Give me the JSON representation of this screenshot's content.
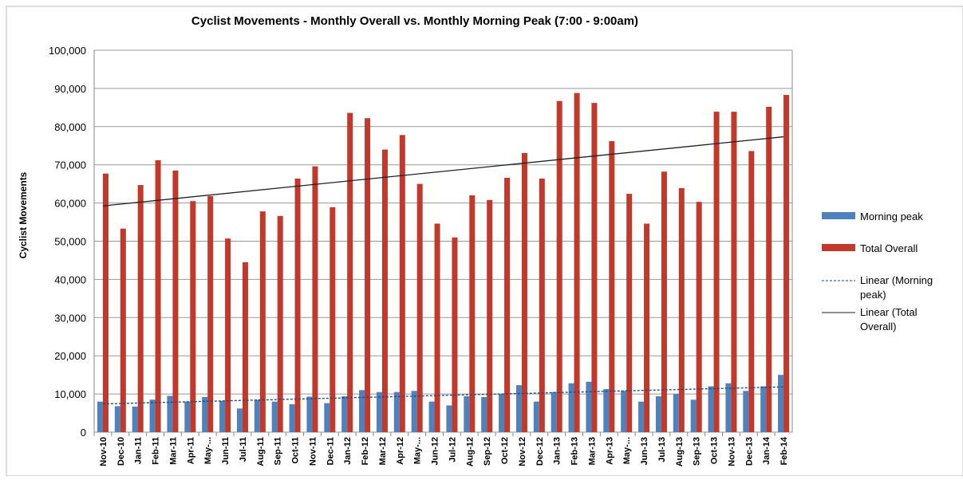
{
  "chart_data": {
    "type": "bar",
    "title": "Cyclist Movements - Monthly Overall vs. Monthly Morning  Peak (7:00 - 9:00am)",
    "y_label": "Cyclist Movements",
    "categories": [
      "Nov-10",
      "Dec-10",
      "Jan-11",
      "Feb-11",
      "Mar-11",
      "Apr-11",
      "May-...",
      "Jun-11",
      "Jul-11",
      "Aug-11",
      "Sep-11",
      "Oct-11",
      "Nov-11",
      "Dec-11",
      "Jan-12",
      "Feb-12",
      "Mar-12",
      "Apr-12",
      "May-...",
      "Jun-12",
      "Jul-12",
      "Aug-12",
      "Sep-12",
      "Oct-12",
      "Nov-12",
      "Dec-12",
      "Jan-13",
      "Feb-13",
      "Mar-13",
      "Apr-13",
      "May-...",
      "Jun-13",
      "Jul-13",
      "Aug-13",
      "Sep-13",
      "Oct-13",
      "Nov-13",
      "Dec-13",
      "Jan-14",
      "Feb-14"
    ],
    "series": [
      {
        "name": "Morning peak",
        "color": "#4f81bd",
        "trendline": {
          "name": "Linear (Morning peak)",
          "dash": true,
          "color": "#1f497d"
        },
        "values": [
          8000,
          6800,
          6700,
          8500,
          9500,
          8000,
          9200,
          8200,
          6200,
          8500,
          8000,
          7300,
          9300,
          7600,
          9400,
          11000,
          10500,
          10500,
          10800,
          8000,
          7000,
          9400,
          9200,
          10000,
          12300,
          8000,
          10500,
          12800,
          13200,
          11300,
          10800,
          8000,
          9400,
          10000,
          8500,
          12000,
          12800,
          10800,
          12000,
          15000
        ]
      },
      {
        "name": "Total Overall",
        "color": "#c0392b",
        "trendline": {
          "name": "Linear (Total Overall)",
          "dash": false,
          "color": "#222222"
        },
        "values": [
          67700,
          53300,
          64700,
          71200,
          68500,
          60500,
          61800,
          50700,
          44500,
          57800,
          56600,
          66400,
          69600,
          58900,
          83600,
          82200,
          74000,
          77800,
          65000,
          54600,
          51000,
          62000,
          60800,
          66600,
          73100,
          66400,
          86700,
          88800,
          86200,
          76200,
          62400,
          54600,
          68200,
          63900,
          60300,
          83900,
          83900,
          73600,
          85200,
          88300
        ]
      }
    ],
    "ylim": [
      0,
      100000
    ],
    "yticks": [
      0,
      {
        "value": 10000,
        "label": "10,000"
      },
      {
        "value": 20000,
        "label": "20,000"
      },
      {
        "value": 30000,
        "label": "30,000"
      },
      {
        "value": 40000,
        "label": "40,000"
      },
      {
        "value": 50000,
        "label": "50,000"
      },
      {
        "value": 60000,
        "label": "60,000"
      },
      {
        "value": 70000,
        "label": "70,000"
      },
      {
        "value": 80000,
        "label": "80,000"
      },
      {
        "value": 90000,
        "label": "90,000"
      },
      {
        "value": 100000,
        "label": "100,000"
      }
    ],
    "grid": true,
    "legend": "right"
  }
}
